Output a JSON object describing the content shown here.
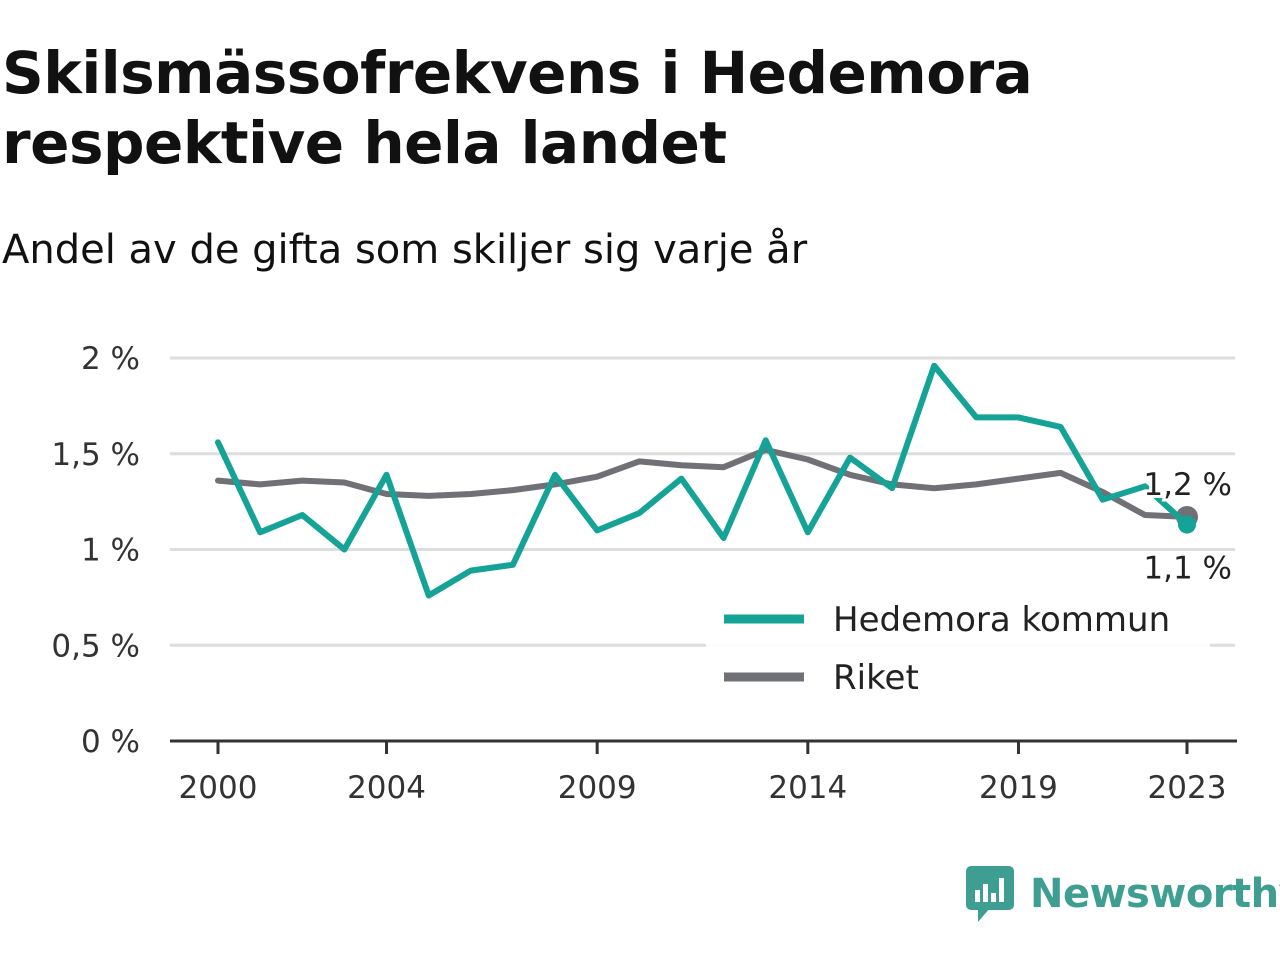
{
  "title": "Skilsmässofrekvens i Hedemora respektive hela landet",
  "subtitle": "Andel av de gifta som skiljer sig varje år",
  "brand": "Newsworthy",
  "colors": {
    "hedemora": "#14a396",
    "riket": "#707077",
    "grid": "#dddddd",
    "axis": "#333333",
    "brand": "#3e9e92"
  },
  "chart_data": {
    "type": "line",
    "title": "Skilsmässofrekvens i Hedemora respektive hela landet",
    "subtitle": "Andel av de gifta som skiljer sig varje år",
    "xlabel": "",
    "ylabel": "",
    "x": [
      2000,
      2001,
      2002,
      2003,
      2004,
      2005,
      2006,
      2007,
      2008,
      2009,
      2010,
      2011,
      2012,
      2013,
      2014,
      2015,
      2016,
      2017,
      2018,
      2019,
      2020,
      2021,
      2022,
      2023
    ],
    "x_ticks": [
      2000,
      2004,
      2009,
      2014,
      2019,
      2023
    ],
    "y_ticks": [
      0,
      0.5,
      1,
      1.5,
      2
    ],
    "y_tick_labels": [
      "0 %",
      "0,5 %",
      "1 %",
      "1,5 %",
      "2 %"
    ],
    "ylim": [
      0,
      2
    ],
    "grid": true,
    "legend_position": "bottom-right",
    "series": [
      {
        "name": "Hedemora kommun",
        "color": "#14a396",
        "values": [
          1.56,
          1.09,
          1.18,
          1.0,
          1.39,
          0.76,
          0.89,
          0.92,
          1.39,
          1.1,
          1.19,
          1.37,
          1.06,
          1.57,
          1.09,
          1.48,
          1.32,
          1.96,
          1.69,
          1.69,
          1.64,
          1.26,
          1.33,
          1.13
        ],
        "end_label": "1,1 %"
      },
      {
        "name": "Riket",
        "color": "#707077",
        "values": [
          1.36,
          1.34,
          1.36,
          1.35,
          1.29,
          1.28,
          1.29,
          1.31,
          1.34,
          1.38,
          1.46,
          1.44,
          1.43,
          1.52,
          1.47,
          1.39,
          1.34,
          1.32,
          1.34,
          1.37,
          1.4,
          1.3,
          1.18,
          1.17
        ],
        "end_label": "1,2 %"
      }
    ]
  }
}
